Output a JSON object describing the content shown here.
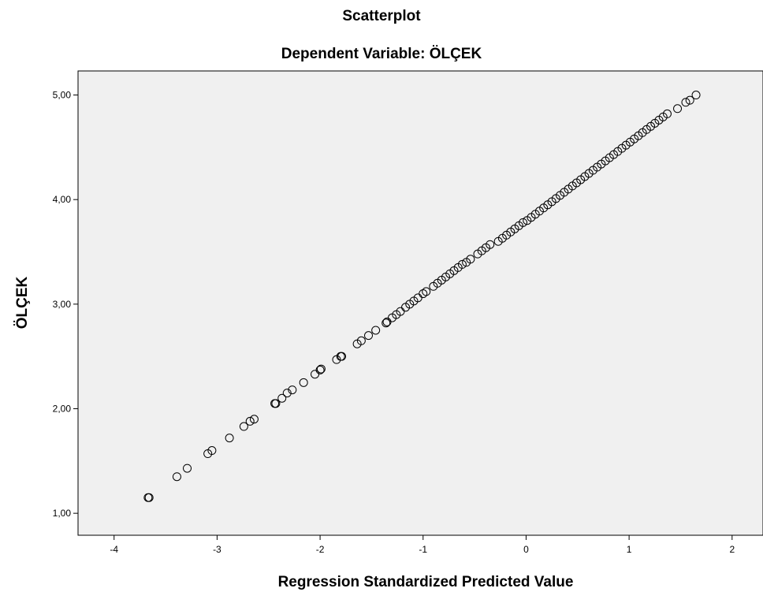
{
  "chart_data": {
    "type": "scatter",
    "title": "Scatterplot",
    "subtitle": "Dependent Variable: ÖLÇEK",
    "xlabel": "Regression Standardized Predicted Value",
    "ylabel": "ÖLÇEK",
    "xlim": [
      -4.35,
      2.3
    ],
    "ylim": [
      0.79,
      5.23
    ],
    "xticks": [
      -4,
      -3,
      -2,
      -1,
      0,
      1,
      2
    ],
    "xtick_labels": [
      "-4",
      "-3",
      "-2",
      "-1",
      "0",
      "1",
      "2"
    ],
    "yticks": [
      1,
      2,
      3,
      4,
      5
    ],
    "ytick_labels": [
      "1,00",
      "2,00",
      "3,00",
      "4,00",
      "5,00"
    ],
    "grid": false,
    "marker": "open-circle",
    "colors": {
      "plot_background": "#f0f0f0",
      "marker_edge": "#000000"
    },
    "points": [
      [
        -3.67,
        1.15
      ],
      [
        -3.66,
        1.15
      ],
      [
        -3.39,
        1.35
      ],
      [
        -3.29,
        1.43
      ],
      [
        -3.09,
        1.57
      ],
      [
        -3.05,
        1.6
      ],
      [
        -2.88,
        1.72
      ],
      [
        -2.74,
        1.83
      ],
      [
        -2.68,
        1.88
      ],
      [
        -2.64,
        1.9
      ],
      [
        -2.44,
        2.05
      ],
      [
        -2.43,
        2.05
      ],
      [
        -2.37,
        2.1
      ],
      [
        -2.32,
        2.15
      ],
      [
        -2.27,
        2.18
      ],
      [
        -2.16,
        2.25
      ],
      [
        -2.05,
        2.33
      ],
      [
        -2.0,
        2.37
      ],
      [
        -1.99,
        2.38
      ],
      [
        -1.84,
        2.47
      ],
      [
        -1.8,
        2.5
      ],
      [
        -1.79,
        2.5
      ],
      [
        -1.64,
        2.62
      ],
      [
        -1.6,
        2.65
      ],
      [
        -1.53,
        2.7
      ],
      [
        -1.46,
        2.75
      ],
      [
        -1.36,
        2.82
      ],
      [
        -1.35,
        2.83
      ],
      [
        -1.3,
        2.87
      ],
      [
        -1.26,
        2.9
      ],
      [
        -1.22,
        2.93
      ],
      [
        -1.17,
        2.97
      ],
      [
        -1.13,
        3.0
      ],
      [
        -1.09,
        3.03
      ],
      [
        -1.05,
        3.06
      ],
      [
        -1.0,
        3.1
      ],
      [
        -0.97,
        3.12
      ],
      [
        -0.9,
        3.17
      ],
      [
        -0.86,
        3.2
      ],
      [
        -0.82,
        3.23
      ],
      [
        -0.78,
        3.26
      ],
      [
        -0.74,
        3.29
      ],
      [
        -0.7,
        3.32
      ],
      [
        -0.66,
        3.35
      ],
      [
        -0.62,
        3.38
      ],
      [
        -0.58,
        3.4
      ],
      [
        -0.54,
        3.43
      ],
      [
        -0.47,
        3.48
      ],
      [
        -0.43,
        3.51
      ],
      [
        -0.39,
        3.54
      ],
      [
        -0.35,
        3.57
      ],
      [
        -0.27,
        3.6
      ],
      [
        -0.23,
        3.63
      ],
      [
        -0.19,
        3.66
      ],
      [
        -0.15,
        3.69
      ],
      [
        -0.11,
        3.72
      ],
      [
        -0.07,
        3.75
      ],
      [
        -0.03,
        3.78
      ],
      [
        0.01,
        3.8
      ],
      [
        0.05,
        3.83
      ],
      [
        0.09,
        3.86
      ],
      [
        0.13,
        3.89
      ],
      [
        0.17,
        3.92
      ],
      [
        0.21,
        3.95
      ],
      [
        0.25,
        3.98
      ],
      [
        0.29,
        4.01
      ],
      [
        0.33,
        4.04
      ],
      [
        0.37,
        4.07
      ],
      [
        0.41,
        4.1
      ],
      [
        0.45,
        4.13
      ],
      [
        0.49,
        4.16
      ],
      [
        0.53,
        4.19
      ],
      [
        0.57,
        4.22
      ],
      [
        0.61,
        4.25
      ],
      [
        0.65,
        4.28
      ],
      [
        0.69,
        4.31
      ],
      [
        0.73,
        4.34
      ],
      [
        0.77,
        4.37
      ],
      [
        0.81,
        4.4
      ],
      [
        0.85,
        4.43
      ],
      [
        0.89,
        4.46
      ],
      [
        0.93,
        4.49
      ],
      [
        0.97,
        4.52
      ],
      [
        1.01,
        4.55
      ],
      [
        1.05,
        4.58
      ],
      [
        1.09,
        4.61
      ],
      [
        1.13,
        4.64
      ],
      [
        1.17,
        4.67
      ],
      [
        1.21,
        4.7
      ],
      [
        1.25,
        4.73
      ],
      [
        1.29,
        4.76
      ],
      [
        1.33,
        4.79
      ],
      [
        1.37,
        4.82
      ],
      [
        1.47,
        4.87
      ],
      [
        1.55,
        4.93
      ],
      [
        1.59,
        4.95
      ],
      [
        1.65,
        5.0
      ]
    ]
  }
}
